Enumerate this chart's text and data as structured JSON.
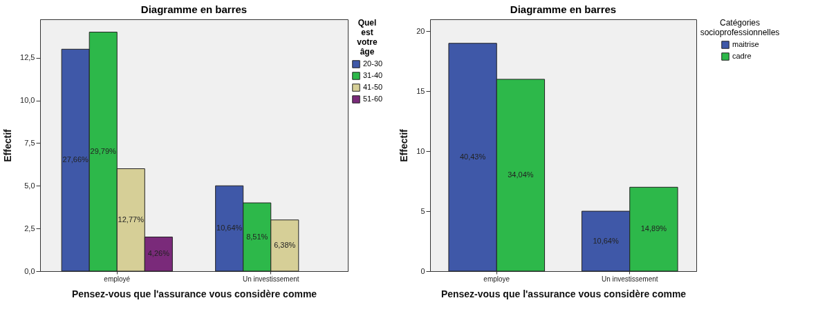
{
  "chart_data": [
    {
      "type": "bar",
      "title": "Diagramme en barres",
      "xlabel": "Pensez-vous que l'assurance vous considère comme",
      "ylabel": "Effectif",
      "legend_title": "Quel est votre âge",
      "categories": [
        "employé",
        "Un investissement"
      ],
      "series": [
        {
          "name": "20-30",
          "color": "#3f58a8",
          "values": [
            13,
            5
          ]
        },
        {
          "name": "31-40",
          "color": "#2db84a",
          "values": [
            14,
            4
          ]
        },
        {
          "name": "41-50",
          "color": "#d6cf97",
          "values": [
            6,
            3
          ]
        },
        {
          "name": "51-60",
          "color": "#7a2a7a",
          "values": [
            2,
            null
          ]
        }
      ],
      "annotations": [
        "27,66%",
        "29,79%",
        "12,77%",
        "4,26%",
        "10,64%",
        "8,51%",
        "6,38%"
      ],
      "ylim": [
        0,
        14.75
      ],
      "yticks": [
        {
          "value": 0,
          "label": "0,0"
        },
        {
          "value": 2.5,
          "label": "2,5"
        },
        {
          "value": 5,
          "label": "5,0"
        },
        {
          "value": 7.5,
          "label": "7,5"
        },
        {
          "value": 10,
          "label": "10,0"
        },
        {
          "value": 12.5,
          "label": "12,5"
        }
      ],
      "grid": false,
      "legend": "top right"
    },
    {
      "type": "bar",
      "title": "Diagramme en barres",
      "xlabel": "Pensez-vous que l'assurance vous considère comme",
      "ylabel": "Effectif",
      "legend_title": "Catégories socioprofessionnelles",
      "categories": [
        "employe",
        "Un investissement"
      ],
      "series": [
        {
          "name": "maitrise",
          "color": "#3f58a8",
          "values": [
            19,
            5
          ]
        },
        {
          "name": "cadre",
          "color": "#2db84a",
          "values": [
            16,
            7
          ]
        }
      ],
      "annotations": [
        "40,43%",
        "34,04%",
        "10,64%",
        "14,89%"
      ],
      "ylim": [
        0,
        21
      ],
      "yticks": [
        0,
        5,
        10,
        15,
        20
      ],
      "grid": false,
      "legend": "top right"
    }
  ]
}
